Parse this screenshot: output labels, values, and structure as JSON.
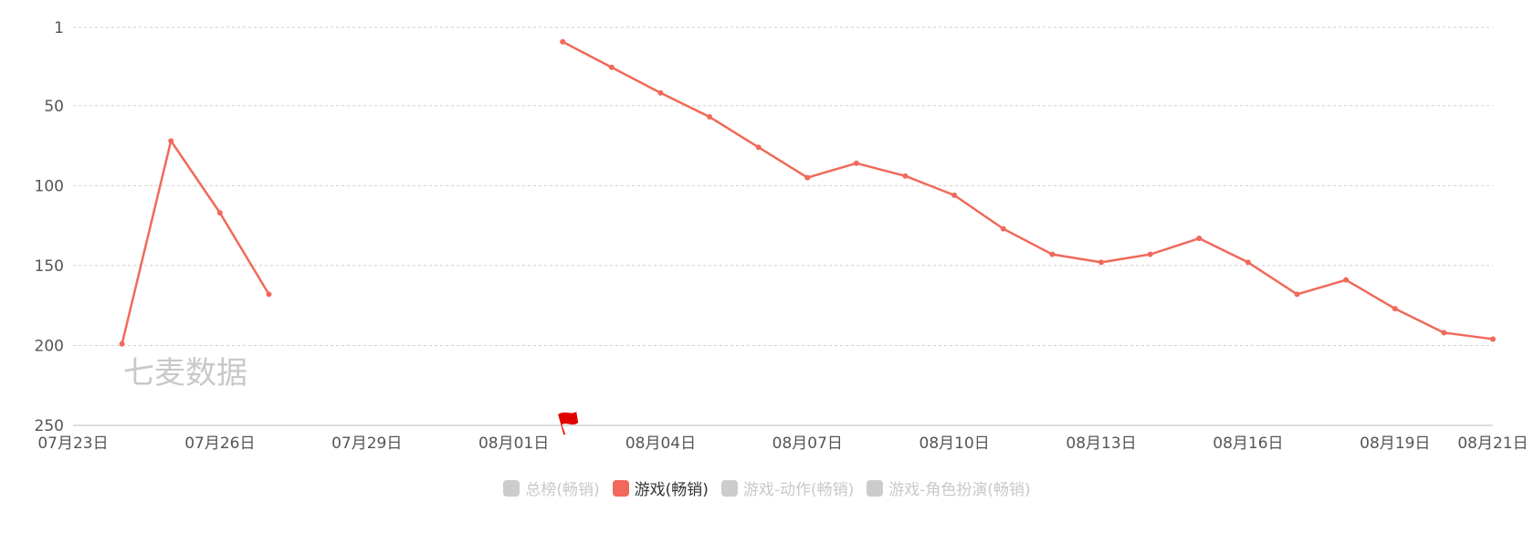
{
  "chart_data": {
    "type": "line",
    "title": "",
    "xlabel": "",
    "ylabel": "",
    "y_reversed": true,
    "ylim": [
      1,
      250
    ],
    "y_ticks": [
      1,
      50,
      100,
      150,
      200,
      250
    ],
    "x_range": [
      "07-23",
      "08-21"
    ],
    "x_ticks": [
      "07月23日",
      "07月26日",
      "07月29日",
      "08月01日",
      "08月04日",
      "08月07日",
      "08月10日",
      "08月13日",
      "08月16日",
      "08月19日",
      "08月21日"
    ],
    "grid": true,
    "legend_placement": "bottom-center",
    "series": [
      {
        "name": "游戏(畅销)",
        "color": "#f0695a",
        "points": [
          {
            "x": "07-24",
            "y": 199
          },
          {
            "x": "07-25",
            "y": 72
          },
          {
            "x": "07-26",
            "y": 117
          },
          {
            "x": "07-27",
            "y": 168
          },
          {
            "x": "07-28",
            "y": null
          },
          {
            "x": "07-29",
            "y": null
          },
          {
            "x": "07-30",
            "y": null
          },
          {
            "x": "07-31",
            "y": null
          },
          {
            "x": "08-01",
            "y": null
          },
          {
            "x": "08-02",
            "y": 10
          },
          {
            "x": "08-03",
            "y": 26
          },
          {
            "x": "08-04",
            "y": 42
          },
          {
            "x": "08-05",
            "y": 57
          },
          {
            "x": "08-06",
            "y": 76
          },
          {
            "x": "08-07",
            "y": 95
          },
          {
            "x": "08-08",
            "y": 86
          },
          {
            "x": "08-09",
            "y": 94
          },
          {
            "x": "08-10",
            "y": 106
          },
          {
            "x": "08-11",
            "y": 127
          },
          {
            "x": "08-12",
            "y": 143
          },
          {
            "x": "08-13",
            "y": 148
          },
          {
            "x": "08-14",
            "y": 143
          },
          {
            "x": "08-15",
            "y": 133
          },
          {
            "x": "08-16",
            "y": 148
          },
          {
            "x": "08-17",
            "y": 168
          },
          {
            "x": "08-18",
            "y": 159
          },
          {
            "x": "08-19",
            "y": 177
          },
          {
            "x": "08-20",
            "y": 192
          },
          {
            "x": "08-21",
            "y": 196
          }
        ]
      }
    ],
    "marker": {
      "type": "flag",
      "x": "08-02",
      "color": "#e00000"
    },
    "watermark": "七麦数据"
  },
  "legend": [
    {
      "label": "总榜(畅销)",
      "active": false,
      "color": "#cccccc"
    },
    {
      "label": "游戏(畅销)",
      "active": true,
      "color": "#f0695a"
    },
    {
      "label": "游戏-动作(畅销)",
      "active": false,
      "color": "#cccccc"
    },
    {
      "label": "游戏-角色扮演(畅销)",
      "active": false,
      "color": "#cccccc"
    }
  ]
}
